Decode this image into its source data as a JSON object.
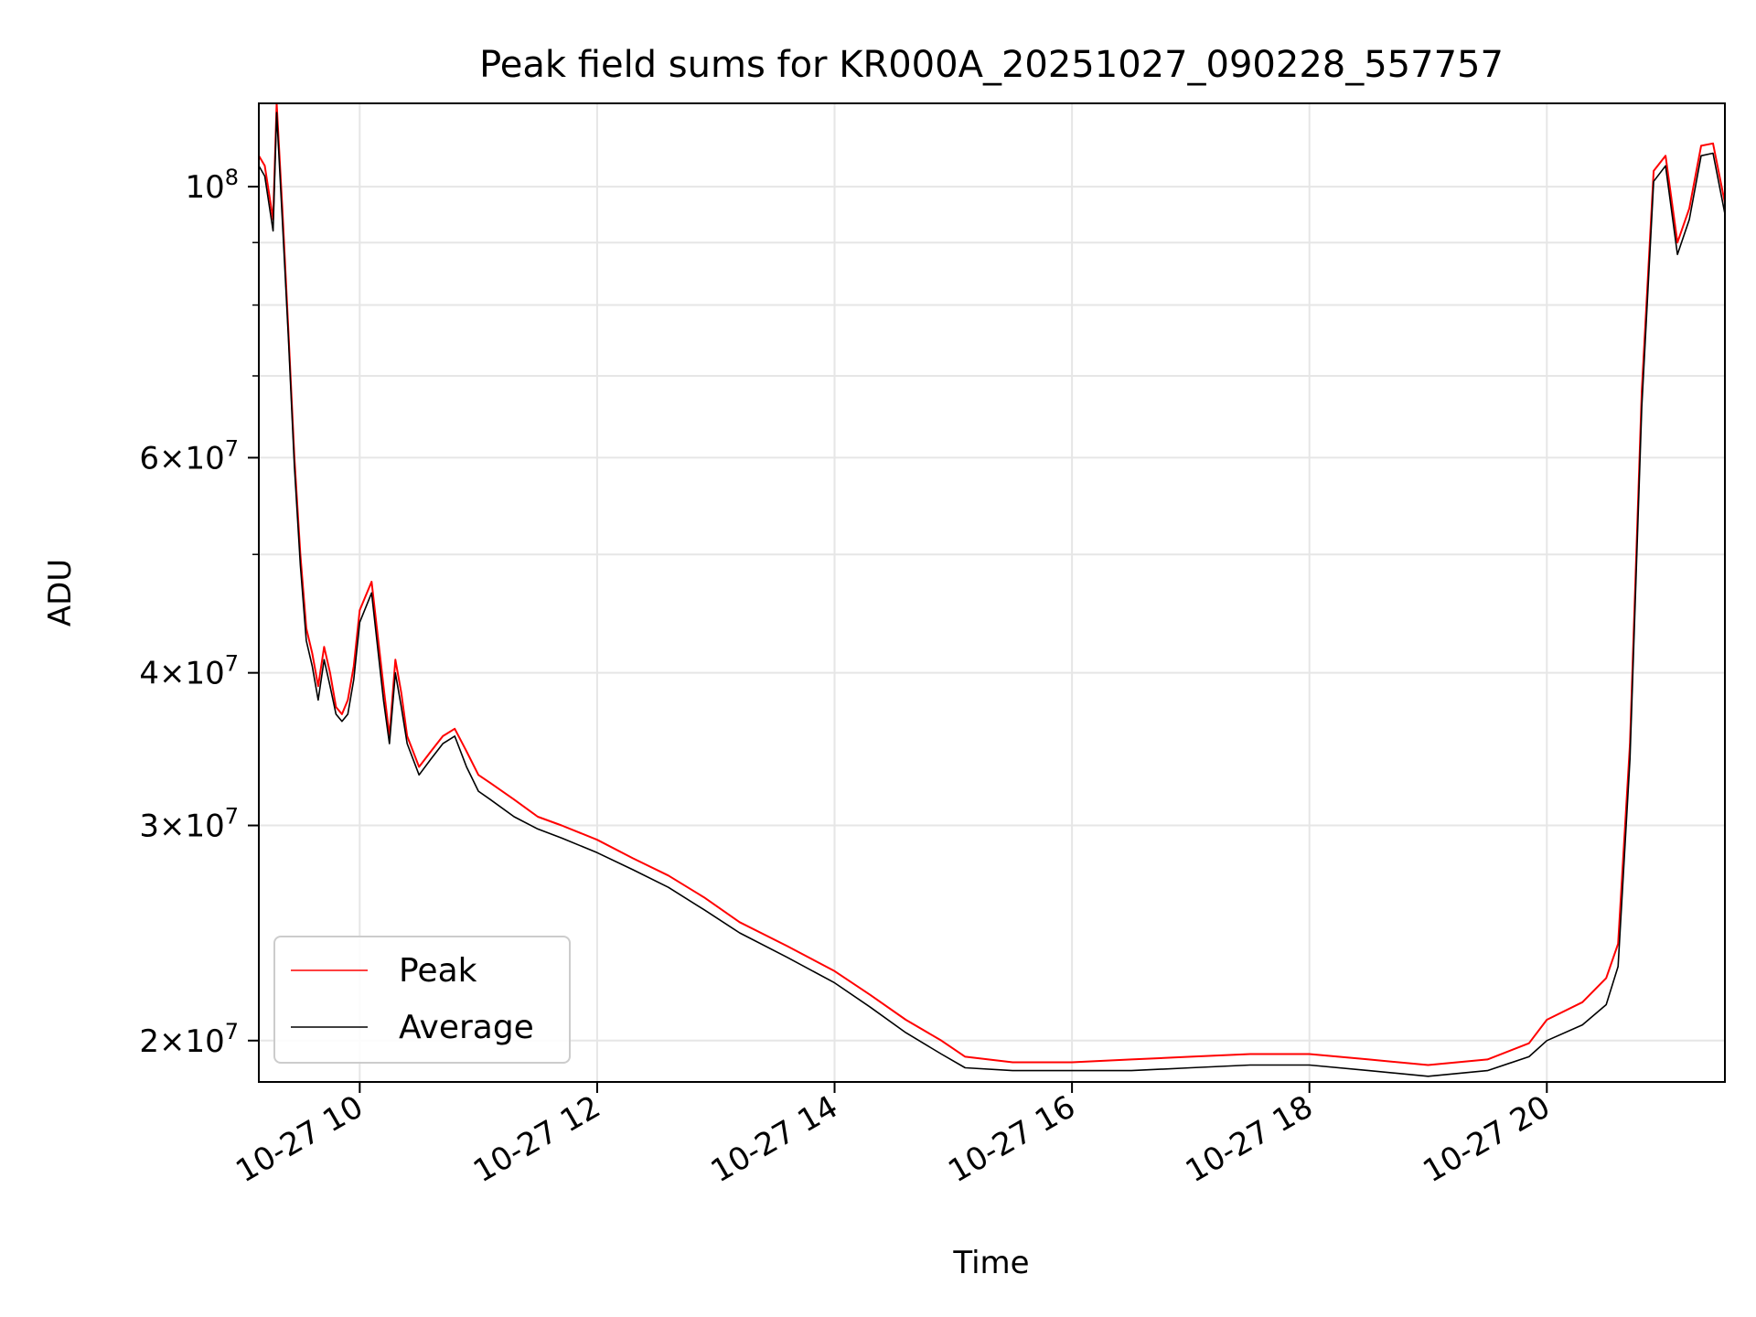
{
  "chart_data": {
    "type": "line",
    "title": "Peak field sums for KR000A_20251027_090228_557757",
    "xlabel": "Time",
    "ylabel": "ADU",
    "x_unit": "hours since 10-27 00:00",
    "xlim": [
      9.15,
      21.5
    ],
    "ylim": [
      18500000,
      117000000
    ],
    "yscale": "log",
    "grid": true,
    "legend_position": "lower-left",
    "x_ticks": [
      {
        "value": 10,
        "label": "10-27 10"
      },
      {
        "value": 12,
        "label": "10-27 12"
      },
      {
        "value": 14,
        "label": "10-27 14"
      },
      {
        "value": 16,
        "label": "10-27 16"
      },
      {
        "value": 18,
        "label": "10-27 18"
      },
      {
        "value": 20,
        "label": "10-27 20"
      }
    ],
    "y_ticks": [
      {
        "value": 20000000,
        "mantissa": "2",
        "exp": "7"
      },
      {
        "value": 30000000,
        "mantissa": "3",
        "exp": "7"
      },
      {
        "value": 40000000,
        "mantissa": "4",
        "exp": "7"
      },
      {
        "value": 60000000,
        "mantissa": "6",
        "exp": "7"
      },
      {
        "value": 100000000,
        "mantissa": "",
        "exp": "8"
      }
    ],
    "y_minor_ticks": [
      50000000,
      70000000,
      80000000,
      90000000
    ],
    "series": [
      {
        "name": "Peak",
        "color": "#ff0000",
        "x": [
          9.15,
          9.2,
          9.27,
          9.3,
          9.35,
          9.4,
          9.45,
          9.5,
          9.55,
          9.6,
          9.65,
          9.7,
          9.75,
          9.8,
          9.85,
          9.9,
          9.95,
          10.0,
          10.1,
          10.2,
          10.25,
          10.3,
          10.35,
          10.4,
          10.5,
          10.6,
          10.7,
          10.8,
          10.9,
          11.0,
          11.1,
          11.3,
          11.5,
          11.7,
          12.0,
          12.3,
          12.6,
          12.9,
          13.2,
          13.6,
          14.0,
          14.3,
          14.6,
          14.9,
          15.1,
          15.5,
          16.0,
          16.5,
          17.0,
          17.5,
          18.0,
          18.5,
          19.0,
          19.5,
          19.85,
          20.0,
          20.3,
          20.5,
          20.6,
          20.7,
          20.8,
          20.9,
          21.0,
          21.1,
          21.2,
          21.3,
          21.4,
          21.5
        ],
        "y": [
          106000000,
          104000000,
          94000000,
          117000000,
          95000000,
          76000000,
          60000000,
          50000000,
          43500000,
          41500000,
          39000000,
          42000000,
          40000000,
          37500000,
          37000000,
          38000000,
          40500000,
          45000000,
          47500000,
          39000000,
          35500000,
          41000000,
          38500000,
          35500000,
          33500000,
          34500000,
          35500000,
          36000000,
          34500000,
          33000000,
          32500000,
          31500000,
          30500000,
          30000000,
          29200000,
          28200000,
          27300000,
          26200000,
          25000000,
          23900000,
          22800000,
          21800000,
          20800000,
          20000000,
          19400000,
          19200000,
          19200000,
          19300000,
          19400000,
          19500000,
          19500000,
          19300000,
          19100000,
          19300000,
          19900000,
          20800000,
          21500000,
          22500000,
          24000000,
          35000000,
          68000000,
          103000000,
          106000000,
          90000000,
          96000000,
          108000000,
          108500000,
          97000000
        ]
      },
      {
        "name": "Average",
        "color": "#000000",
        "x": [
          9.15,
          9.2,
          9.27,
          9.3,
          9.35,
          9.4,
          9.45,
          9.5,
          9.55,
          9.6,
          9.65,
          9.7,
          9.75,
          9.8,
          9.85,
          9.9,
          9.95,
          10.0,
          10.1,
          10.2,
          10.25,
          10.3,
          10.35,
          10.4,
          10.5,
          10.6,
          10.7,
          10.8,
          10.9,
          11.0,
          11.1,
          11.3,
          11.5,
          11.7,
          12.0,
          12.3,
          12.6,
          12.9,
          13.2,
          13.6,
          14.0,
          14.3,
          14.6,
          14.9,
          15.1,
          15.5,
          16.0,
          16.5,
          17.0,
          17.5,
          18.0,
          18.5,
          19.0,
          19.5,
          19.85,
          20.0,
          20.3,
          20.5,
          20.6,
          20.7,
          20.8,
          20.9,
          21.0,
          21.1,
          21.2,
          21.3,
          21.4,
          21.5
        ],
        "y": [
          104000000,
          102000000,
          92000000,
          115000000,
          93000000,
          75000000,
          59000000,
          49000000,
          42500000,
          40500000,
          38000000,
          41000000,
          39000000,
          37000000,
          36500000,
          37000000,
          39500000,
          44000000,
          46500000,
          38000000,
          35000000,
          40000000,
          37500000,
          35000000,
          33000000,
          34000000,
          35000000,
          35500000,
          33500000,
          32000000,
          31500000,
          30500000,
          29800000,
          29300000,
          28500000,
          27600000,
          26700000,
          25600000,
          24500000,
          23400000,
          22300000,
          21300000,
          20300000,
          19500000,
          19000000,
          18900000,
          18900000,
          18900000,
          19000000,
          19100000,
          19100000,
          18900000,
          18700000,
          18900000,
          19400000,
          20000000,
          20600000,
          21400000,
          23000000,
          34000000,
          66000000,
          101000000,
          104000000,
          88000000,
          94000000,
          106000000,
          106500000,
          95000000
        ]
      }
    ]
  }
}
